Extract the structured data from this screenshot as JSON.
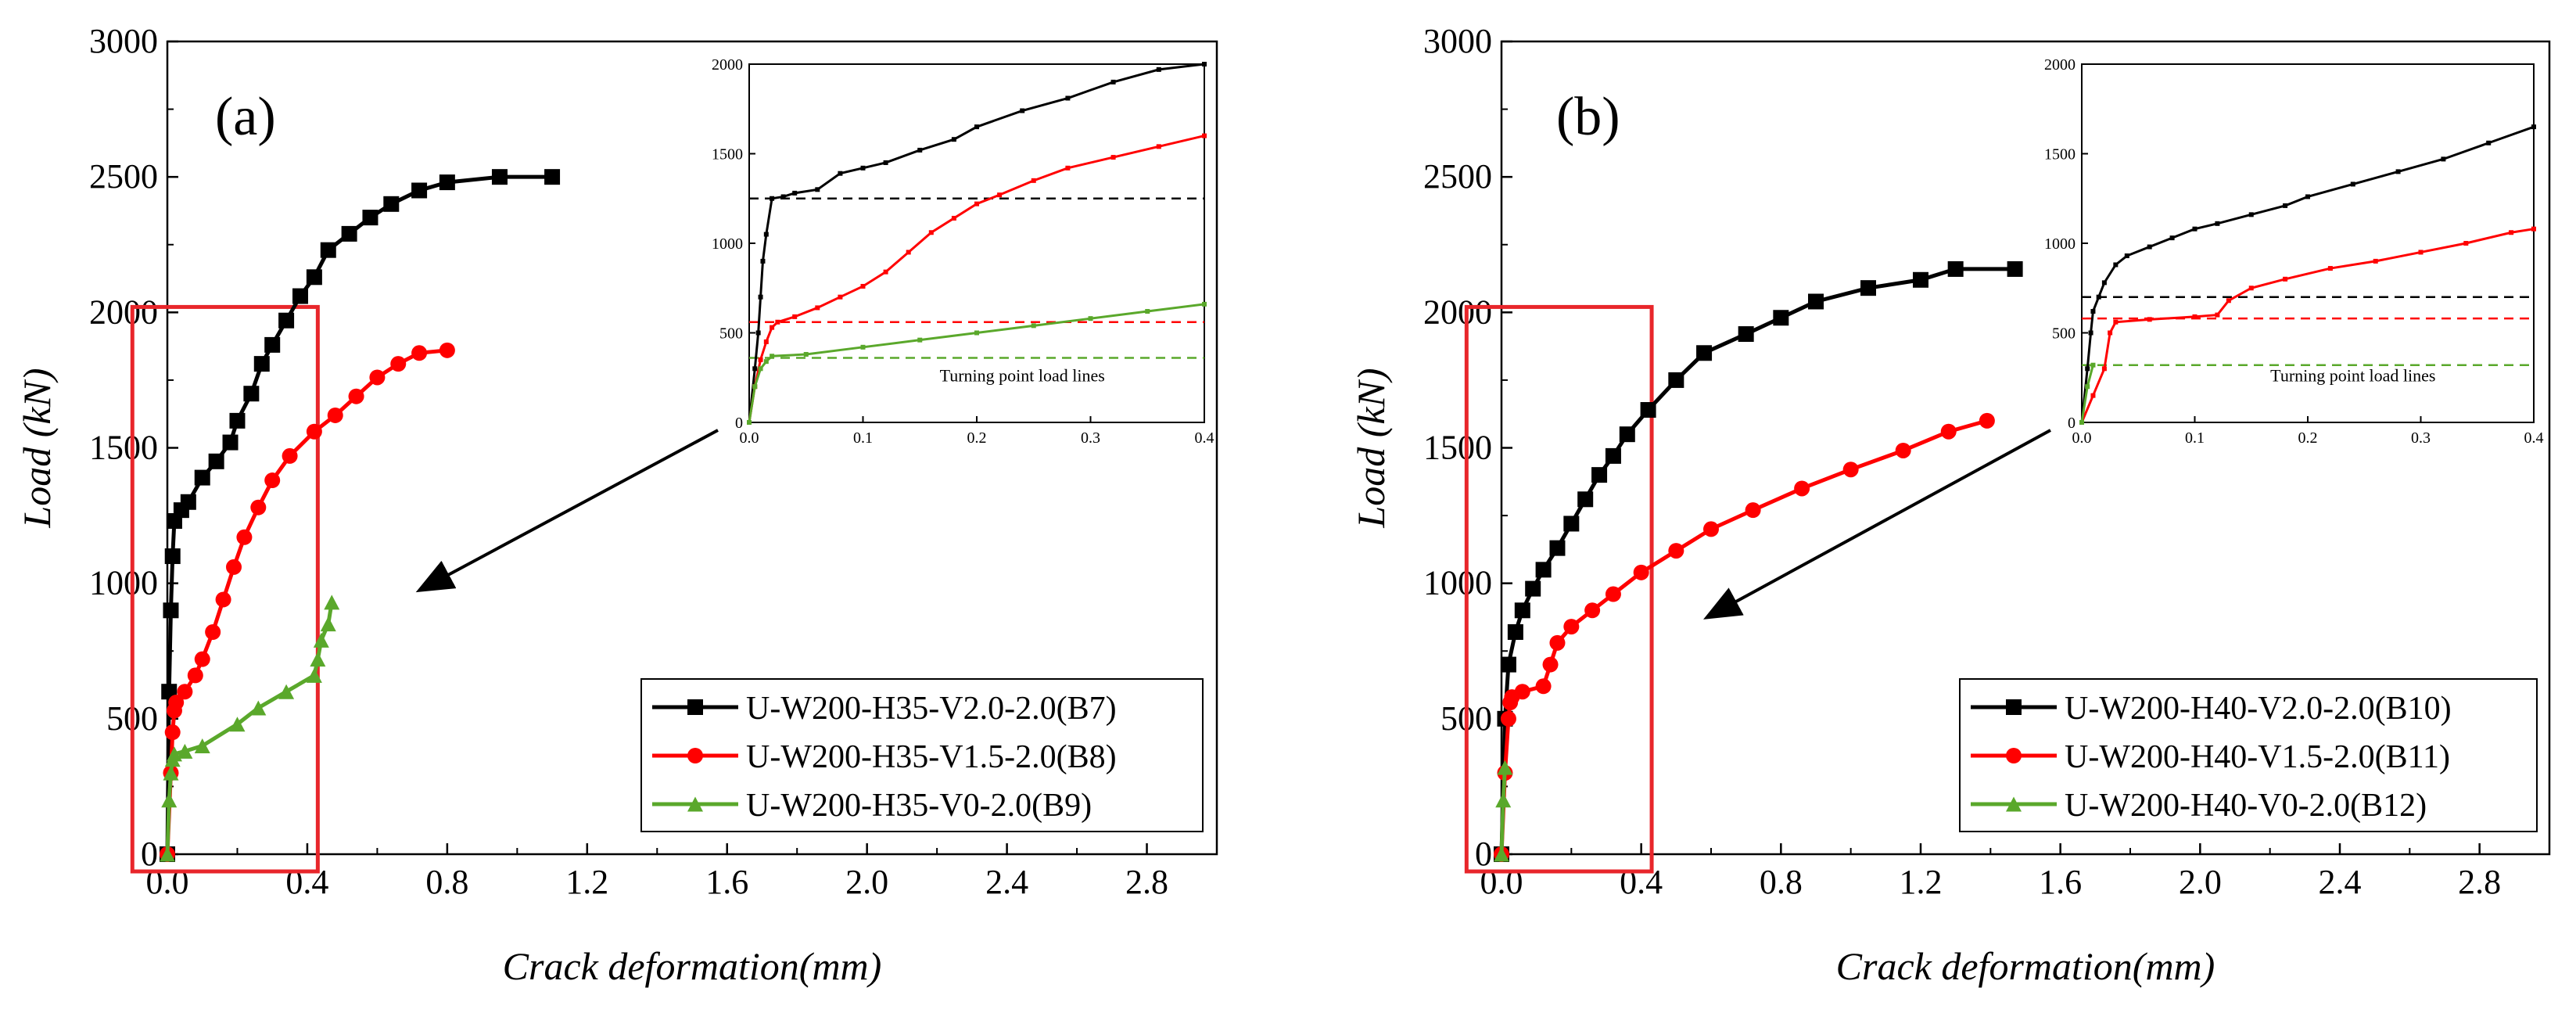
{
  "figure": {
    "colors": {
      "B7": "#000000",
      "B8": "#ff0000",
      "B9": "#5aa82b",
      "B10": "#000000",
      "B11": "#ff0000",
      "B12": "#5aa82b",
      "highlight": "#e8262b"
    }
  },
  "chart_data": [
    {
      "type": "line",
      "panel_label": "(a)",
      "xlabel": "Crack deformation(mm)",
      "ylabel": "Load (kN)",
      "xlim": [
        0,
        3.0
      ],
      "ylim": [
        0,
        3000
      ],
      "xticks": [
        "0.0",
        "0.4",
        "0.8",
        "1.2",
        "1.6",
        "2.0",
        "2.4",
        "2.8"
      ],
      "yticks": [
        "0",
        "500",
        "1000",
        "1500",
        "2000",
        "2500",
        "3000"
      ],
      "legend_position": "bottom-right",
      "highlight_box": {
        "x": [
          -0.1,
          0.43
        ],
        "y": [
          0,
          2020
        ]
      },
      "series": [
        {
          "name": "U-W200-H35-V2.0-2.0(B7)",
          "color": "#000000",
          "marker": "square",
          "x": [
            0,
            0.005,
            0.01,
            0.015,
            0.02,
            0.04,
            0.06,
            0.1,
            0.14,
            0.18,
            0.2,
            0.24,
            0.27,
            0.3,
            0.34,
            0.38,
            0.42,
            0.46,
            0.52,
            0.58,
            0.64,
            0.72,
            0.8,
            0.95,
            1.1
          ],
          "y": [
            0,
            600,
            900,
            1100,
            1230,
            1270,
            1300,
            1390,
            1450,
            1520,
            1600,
            1700,
            1810,
            1880,
            1970,
            2060,
            2130,
            2230,
            2290,
            2350,
            2400,
            2450,
            2480,
            2500,
            2500
          ]
        },
        {
          "name": "U-W200-H35-V1.5-2.0(B8)",
          "color": "#ff0000",
          "marker": "circle",
          "x": [
            0,
            0.01,
            0.015,
            0.02,
            0.025,
            0.05,
            0.08,
            0.1,
            0.13,
            0.16,
            0.19,
            0.22,
            0.26,
            0.3,
            0.35,
            0.42,
            0.48,
            0.54,
            0.6,
            0.66,
            0.72,
            0.8
          ],
          "y": [
            0,
            300,
            450,
            530,
            560,
            600,
            660,
            720,
            820,
            940,
            1060,
            1170,
            1280,
            1380,
            1470,
            1560,
            1620,
            1690,
            1760,
            1810,
            1850,
            1860
          ]
        },
        {
          "name": "U-W200-H35-V0-2.0(B9)",
          "color": "#5aa82b",
          "marker": "triangle",
          "x": [
            0,
            0.005,
            0.01,
            0.015,
            0.02,
            0.05,
            0.1,
            0.2,
            0.26,
            0.34,
            0.42,
            0.43,
            0.44,
            0.46,
            0.47
          ],
          "y": [
            0,
            200,
            300,
            350,
            370,
            380,
            400,
            480,
            540,
            600,
            660,
            720,
            790,
            850,
            930
          ]
        }
      ],
      "inset": {
        "xlim": [
          0,
          0.4
        ],
        "ylim": [
          0,
          2000
        ],
        "xticks": [
          "0.0",
          "0.1",
          "0.2",
          "0.3",
          "0.4"
        ],
        "yticks": [
          "0",
          "500",
          "1000",
          "1500",
          "2000"
        ],
        "annotation": "Turning point load lines",
        "turning_lines": [
          {
            "y": 1250,
            "color": "#000000"
          },
          {
            "y": 560,
            "color": "#ff0000"
          },
          {
            "y": 360,
            "color": "#5aa82b"
          }
        ],
        "series": [
          {
            "color": "#000000",
            "x": [
              0,
              0.005,
              0.008,
              0.01,
              0.012,
              0.015,
              0.02,
              0.03,
              0.04,
              0.06,
              0.08,
              0.1,
              0.12,
              0.15,
              0.18,
              0.2,
              0.24,
              0.28,
              0.32,
              0.36,
              0.4
            ],
            "y": [
              0,
              300,
              500,
              700,
              900,
              1050,
              1250,
              1260,
              1280,
              1300,
              1390,
              1420,
              1450,
              1520,
              1580,
              1650,
              1740,
              1810,
              1900,
              1970,
              2000
            ]
          },
          {
            "color": "#ff0000",
            "x": [
              0,
              0.005,
              0.01,
              0.015,
              0.02,
              0.025,
              0.04,
              0.06,
              0.08,
              0.1,
              0.12,
              0.14,
              0.16,
              0.18,
              0.2,
              0.22,
              0.25,
              0.28,
              0.32,
              0.36,
              0.4
            ],
            "y": [
              0,
              200,
              350,
              450,
              530,
              560,
              590,
              640,
              700,
              760,
              840,
              950,
              1060,
              1140,
              1220,
              1270,
              1350,
              1420,
              1480,
              1540,
              1600
            ]
          },
          {
            "color": "#5aa82b",
            "x": [
              0,
              0.005,
              0.01,
              0.015,
              0.02,
              0.05,
              0.1,
              0.15,
              0.2,
              0.25,
              0.3,
              0.35,
              0.4
            ],
            "y": [
              0,
              200,
              300,
              340,
              370,
              380,
              420,
              460,
              500,
              540,
              580,
              620,
              660
            ]
          }
        ]
      },
      "arrow": {
        "from": [
          0.4,
          1250
        ],
        "to": [
          0.1,
          920
        ]
      }
    },
    {
      "type": "line",
      "panel_label": "(b)",
      "xlabel": "Crack deformation(mm)",
      "ylabel": "Load (kN)",
      "xlim": [
        0,
        3.0
      ],
      "ylim": [
        0,
        3000
      ],
      "xticks": [
        "0.0",
        "0.4",
        "0.8",
        "1.2",
        "1.6",
        "2.0",
        "2.4",
        "2.8"
      ],
      "yticks": [
        "0",
        "500",
        "1000",
        "1500",
        "2000",
        "2500",
        "3000"
      ],
      "legend_position": "bottom-right",
      "highlight_box": {
        "x": [
          -0.1,
          0.43
        ],
        "y": [
          0,
          2020
        ]
      },
      "series": [
        {
          "name": "U-W200-H40-V2.0-2.0(B10)",
          "color": "#000000",
          "marker": "square",
          "x": [
            0,
            0.01,
            0.02,
            0.04,
            0.06,
            0.09,
            0.12,
            0.16,
            0.2,
            0.24,
            0.28,
            0.32,
            0.36,
            0.42,
            0.5,
            0.58,
            0.7,
            0.8,
            0.9,
            1.05,
            1.2,
            1.3,
            1.47
          ],
          "y": [
            0,
            500,
            700,
            820,
            900,
            980,
            1050,
            1130,
            1220,
            1310,
            1400,
            1470,
            1550,
            1640,
            1750,
            1850,
            1920,
            1980,
            2040,
            2090,
            2120,
            2160,
            2160
          ]
        },
        {
          "name": "U-W200-H40-V1.5-2.0(B11)",
          "color": "#ff0000",
          "marker": "circle",
          "x": [
            0,
            0.01,
            0.02,
            0.025,
            0.03,
            0.06,
            0.12,
            0.14,
            0.16,
            0.2,
            0.26,
            0.32,
            0.4,
            0.5,
            0.6,
            0.72,
            0.86,
            1.0,
            1.15,
            1.28,
            1.39
          ],
          "y": [
            0,
            300,
            500,
            560,
            580,
            600,
            620,
            700,
            780,
            840,
            900,
            960,
            1040,
            1120,
            1200,
            1270,
            1350,
            1420,
            1490,
            1560,
            1600
          ]
        },
        {
          "name": "U-W200-H40-V0-2.0(B12)",
          "color": "#5aa82b",
          "marker": "triangle",
          "x": [
            0,
            0.005,
            0.01
          ],
          "y": [
            0,
            200,
            320
          ]
        }
      ],
      "inset": {
        "xlim": [
          0,
          0.4
        ],
        "ylim": [
          0,
          2000
        ],
        "xticks": [
          "0.0",
          "0.1",
          "0.2",
          "0.3",
          "0.4"
        ],
        "yticks": [
          "0",
          "500",
          "1000",
          "1500",
          "2000"
        ],
        "annotation": "Turning point load lines",
        "turning_lines": [
          {
            "y": 700,
            "color": "#000000"
          },
          {
            "y": 580,
            "color": "#ff0000"
          },
          {
            "y": 320,
            "color": "#5aa82b"
          }
        ],
        "series": [
          {
            "color": "#000000",
            "x": [
              0,
              0.005,
              0.008,
              0.01,
              0.015,
              0.02,
              0.03,
              0.04,
              0.06,
              0.08,
              0.1,
              0.12,
              0.15,
              0.18,
              0.2,
              0.24,
              0.28,
              0.32,
              0.36,
              0.4
            ],
            "y": [
              0,
              300,
              500,
              620,
              700,
              780,
              880,
              930,
              980,
              1030,
              1080,
              1110,
              1160,
              1210,
              1260,
              1330,
              1400,
              1470,
              1560,
              1650
            ]
          },
          {
            "color": "#ff0000",
            "x": [
              0,
              0.01,
              0.02,
              0.025,
              0.03,
              0.06,
              0.1,
              0.12,
              0.13,
              0.15,
              0.18,
              0.22,
              0.26,
              0.3,
              0.34,
              0.38,
              0.4
            ],
            "y": [
              0,
              150,
              300,
              500,
              560,
              575,
              590,
              600,
              680,
              750,
              800,
              860,
              900,
              950,
              1000,
              1060,
              1080
            ]
          },
          {
            "color": "#5aa82b",
            "x": [
              0,
              0.005,
              0.01
            ],
            "y": [
              0,
              200,
              320
            ]
          }
        ]
      },
      "arrow": {
        "from": [
          1.47,
          1750
        ],
        "to": [
          0.28,
          820
        ]
      }
    }
  ]
}
